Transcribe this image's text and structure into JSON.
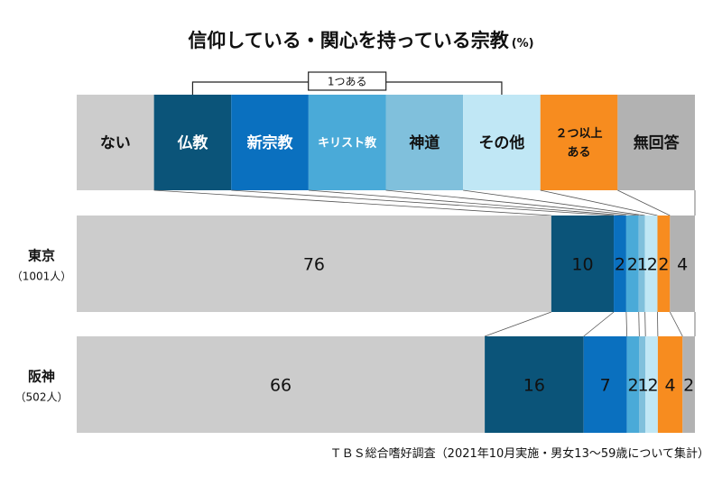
{
  "chart_data": {
    "type": "bar",
    "stacked": true,
    "orientation": "horizontal",
    "title": "信仰している・関心を持っている宗教",
    "unit": "(%)",
    "categories": [
      "ない",
      "仏教",
      "新宗教",
      "キリスト教",
      "神道",
      "その他",
      "２つ以上ある",
      "無回答"
    ],
    "header_labels": [
      "ない",
      "仏教",
      "新宗教",
      "キリスト教",
      "神道",
      "その他",
      "２つ以上\nある",
      "無回答"
    ],
    "bracket_label": "1つある",
    "colors": [
      "#cccccc",
      "#0b5479",
      "#0a70bf",
      "#4aaad8",
      "#80c0dc",
      "#c0e7f5",
      "#f78c1f",
      "#b2b2b2"
    ],
    "rows": [
      {
        "name": "東京",
        "n": "（1001人）",
        "values": [
          76,
          10,
          2,
          2,
          1,
          2,
          2,
          4
        ],
        "labels": [
          "76",
          "10",
          "2",
          "2",
          "1",
          "2",
          "2",
          "4"
        ]
      },
      {
        "name": "阪神",
        "n": "（502人）",
        "values": [
          66,
          16,
          7,
          2,
          1,
          2,
          4,
          2
        ],
        "labels": [
          "66",
          "16",
          "7",
          "2",
          "1",
          "2",
          "4",
          "2"
        ]
      }
    ]
  },
  "source": "ＴＢＳ総合嗜好調査（2021年10月実施・男女13～59歳について集計）"
}
